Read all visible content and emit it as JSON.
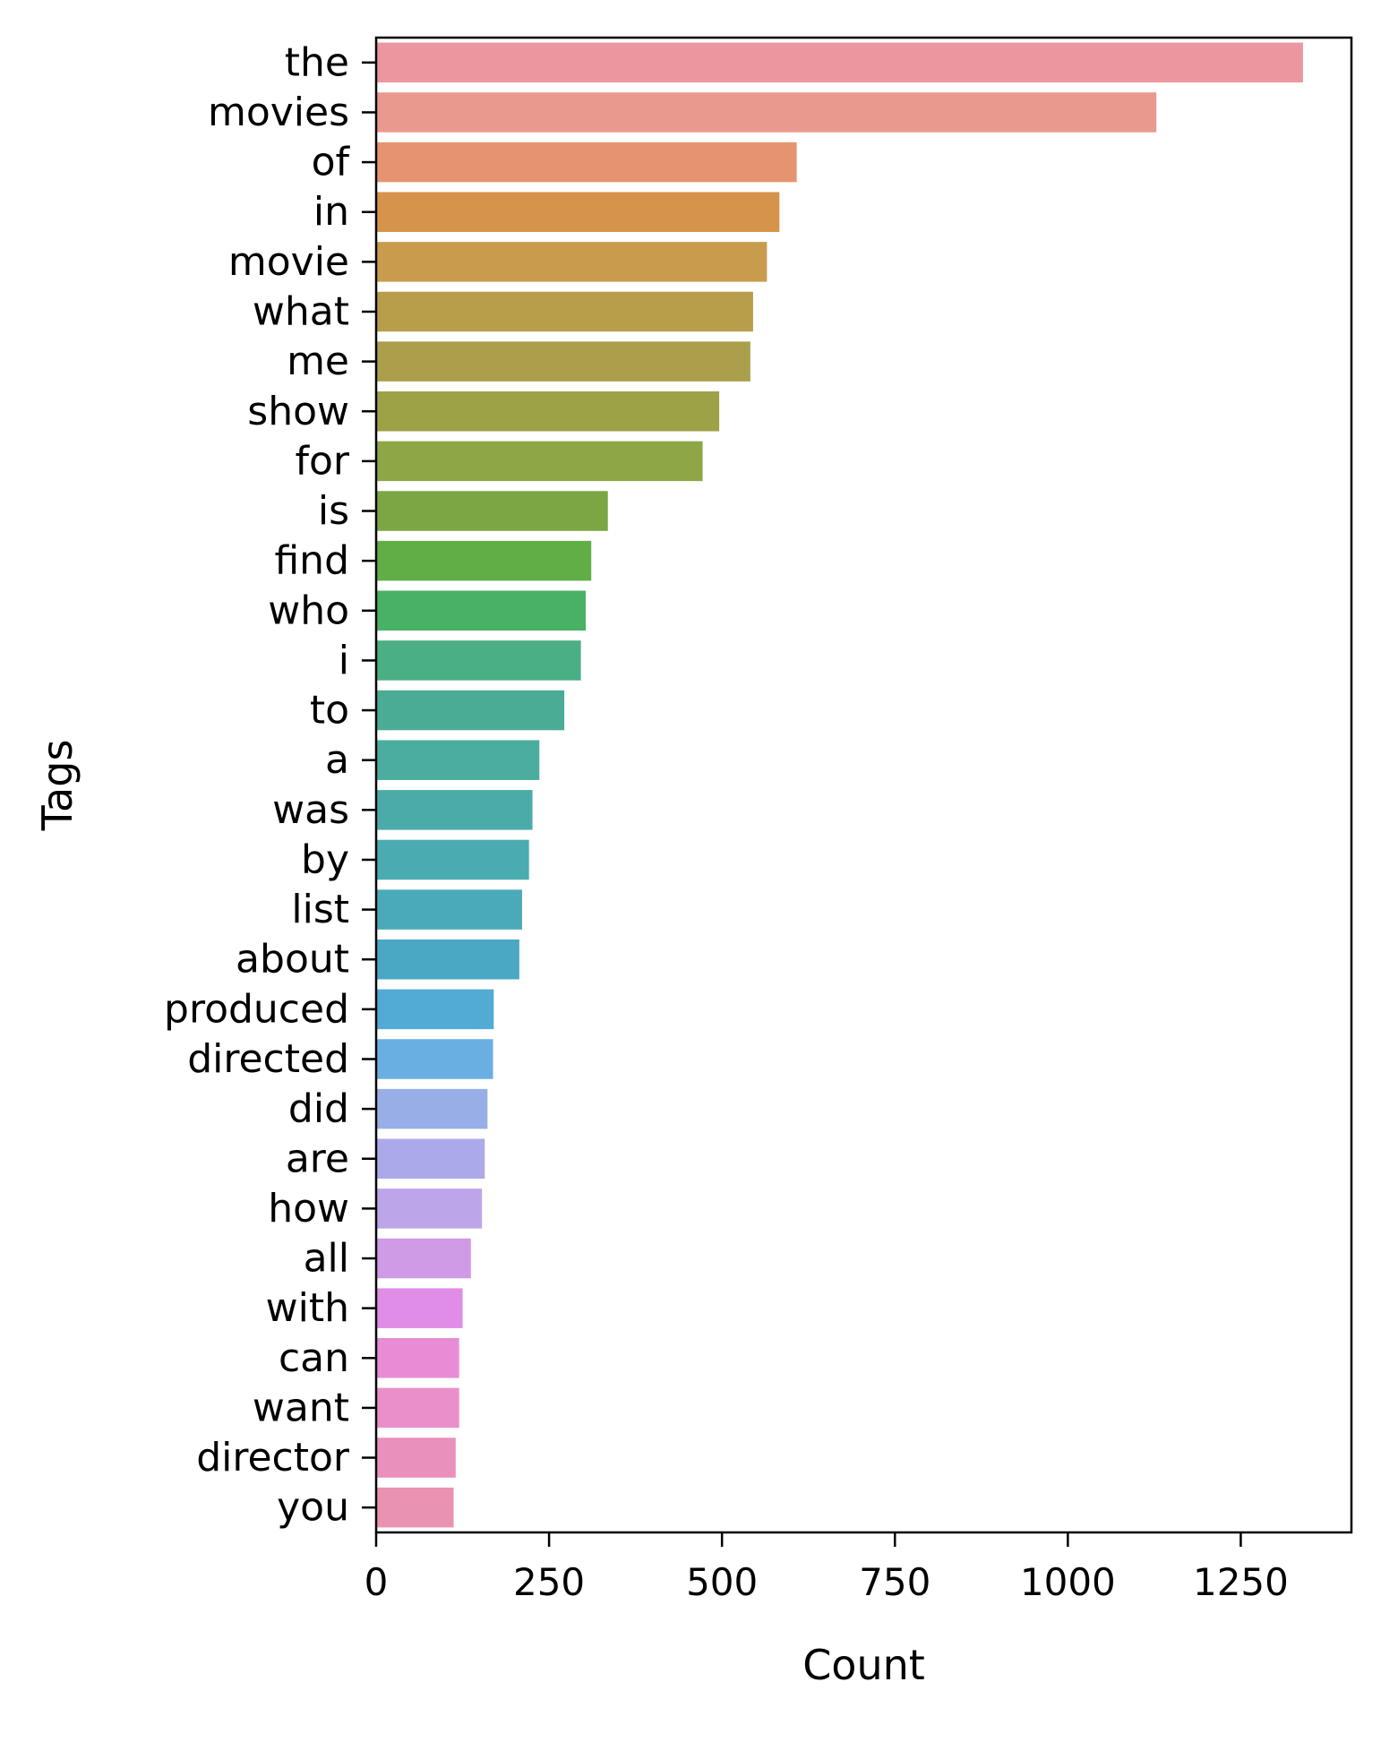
{
  "chart_data": {
    "type": "bar",
    "orientation": "horizontal",
    "title": "",
    "xlabel": "Count",
    "ylabel": "Tags",
    "xlim": [
      0,
      1410
    ],
    "x_ticks": [
      0,
      250,
      500,
      750,
      1000,
      1250
    ],
    "x_tick_labels": [
      "0",
      "250",
      "500",
      "750",
      "1000",
      "1250"
    ],
    "grid": false,
    "legend": "none",
    "categories": [
      "the",
      "movies",
      "of",
      "in",
      "movie",
      "what",
      "me",
      "show",
      "for",
      "is",
      "find",
      "who",
      "i",
      "to",
      "a",
      "was",
      "by",
      "list",
      "about",
      "produced",
      "directed",
      "did",
      "are",
      "how",
      "all",
      "with",
      "can",
      "want",
      "director",
      "you"
    ],
    "values": [
      1340,
      1128,
      608,
      583,
      565,
      545,
      541,
      496,
      472,
      335,
      311,
      303,
      296,
      272,
      236,
      226,
      221,
      211,
      207,
      170,
      169,
      161,
      157,
      153,
      137,
      125,
      120,
      120,
      115,
      112
    ],
    "colors": [
      "#ec97a0",
      "#ea998e",
      "#e69470",
      "#d6934b",
      "#c99c4d",
      "#b89e4b",
      "#ab9f4b",
      "#9da246",
      "#8ea646",
      "#7ba644",
      "#61ae47",
      "#49b166",
      "#4aaf84",
      "#4aac94",
      "#4aad9f",
      "#4aaba8",
      "#4aabb0",
      "#4baab9",
      "#4aa8c5",
      "#52abd4",
      "#6aafe2",
      "#98aee6",
      "#aca9ea",
      "#bda5ea",
      "#cf9ae6",
      "#e08de7",
      "#e88cd6",
      "#ea8fc9",
      "#ea90bc",
      "#ea92b1"
    ]
  }
}
